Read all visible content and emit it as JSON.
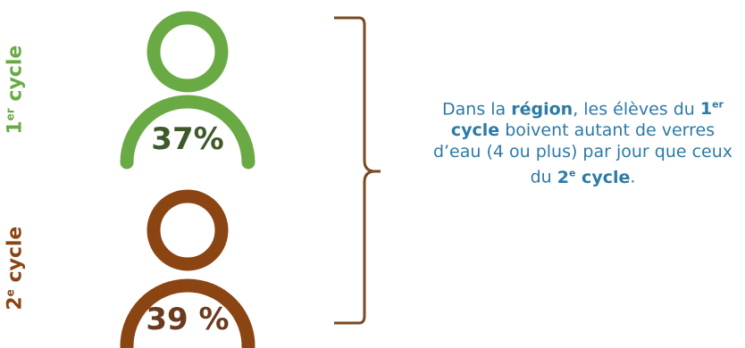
{
  "cycle1": {
    "label_num": "1",
    "label_sup": "er",
    "label_word": "cycle",
    "percent": "37%",
    "color": "#6aaa45"
  },
  "cycle2": {
    "label_num": "2",
    "label_sup": "e",
    "label_word": "cycle",
    "percent": "39 %",
    "color": "#8b4513"
  },
  "summary": {
    "part1": "Dans la ",
    "bold1": "région",
    "part2": ", les élèves du ",
    "bold2_num": "1",
    "bold2_sup": "er",
    "bold2_word": " cycle",
    "part3": " boivent autant de verres d’eau (4 ou plus) par jour que ceux du ",
    "bold3_num": "2",
    "bold3_sup": "e",
    "bold3_word": " cycle",
    "part4": "."
  }
}
